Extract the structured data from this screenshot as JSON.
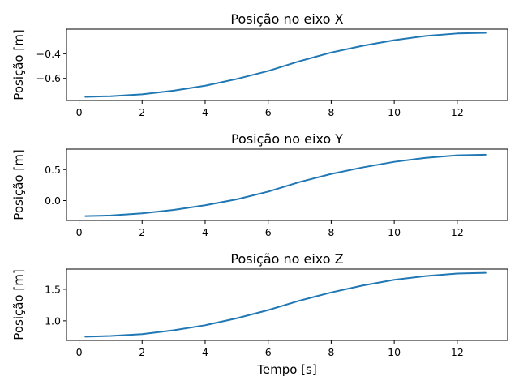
{
  "chart_data": [
    {
      "type": "line",
      "title": "Posição no eixo X",
      "xlabel": "",
      "ylabel": "Posição [m]",
      "xlim": [
        -0.4,
        13.6
      ],
      "ylim": [
        -0.78,
        -0.2
      ],
      "xticks": [
        0,
        2,
        4,
        6,
        8,
        10,
        12
      ],
      "yticks": [
        -0.6,
        -0.4
      ],
      "ytick_labels": [
        "−0.6",
        "−0.4"
      ],
      "grid": false,
      "color": "#1f77b4",
      "series": [
        {
          "x": [
            0.2,
            1,
            2,
            3,
            4,
            5,
            6,
            7,
            8,
            9,
            10,
            11,
            12,
            12.9
          ],
          "y": [
            -0.75,
            -0.745,
            -0.73,
            -0.7,
            -0.66,
            -0.605,
            -0.54,
            -0.46,
            -0.39,
            -0.335,
            -0.29,
            -0.255,
            -0.235,
            -0.23
          ]
        }
      ]
    },
    {
      "type": "line",
      "title": "Posição no eixo Y",
      "xlabel": "",
      "ylabel": "Posição [m]",
      "xlim": [
        -0.4,
        13.6
      ],
      "ylim": [
        -0.32,
        0.83
      ],
      "xticks": [
        0,
        2,
        4,
        6,
        8,
        10,
        12
      ],
      "yticks": [
        0.0,
        0.5
      ],
      "ytick_labels": [
        "0.0",
        "0.5"
      ],
      "grid": false,
      "color": "#1f77b4",
      "series": [
        {
          "x": [
            0.2,
            1,
            2,
            3,
            4,
            5,
            6,
            7,
            8,
            9,
            10,
            11,
            12,
            12.9
          ],
          "y": [
            -0.25,
            -0.24,
            -0.205,
            -0.15,
            -0.075,
            0.02,
            0.145,
            0.3,
            0.43,
            0.535,
            0.625,
            0.69,
            0.73,
            0.74
          ]
        }
      ]
    },
    {
      "type": "line",
      "title": "Posição no eixo Z",
      "xlabel": "Tempo [s]",
      "ylabel": "Posição [m]",
      "xlim": [
        -0.4,
        13.6
      ],
      "ylim": [
        0.69,
        1.82
      ],
      "xticks": [
        0,
        2,
        4,
        6,
        8,
        10,
        12
      ],
      "yticks": [
        1.0,
        1.5
      ],
      "ytick_labels": [
        "1.0",
        "1.5"
      ],
      "grid": false,
      "color": "#1f77b4",
      "series": [
        {
          "x": [
            0.2,
            1,
            2,
            3,
            4,
            5,
            6,
            7,
            8,
            9,
            10,
            11,
            12,
            12.9
          ],
          "y": [
            0.75,
            0.76,
            0.79,
            0.85,
            0.93,
            1.04,
            1.17,
            1.32,
            1.45,
            1.56,
            1.65,
            1.71,
            1.75,
            1.76
          ]
        }
      ]
    }
  ]
}
